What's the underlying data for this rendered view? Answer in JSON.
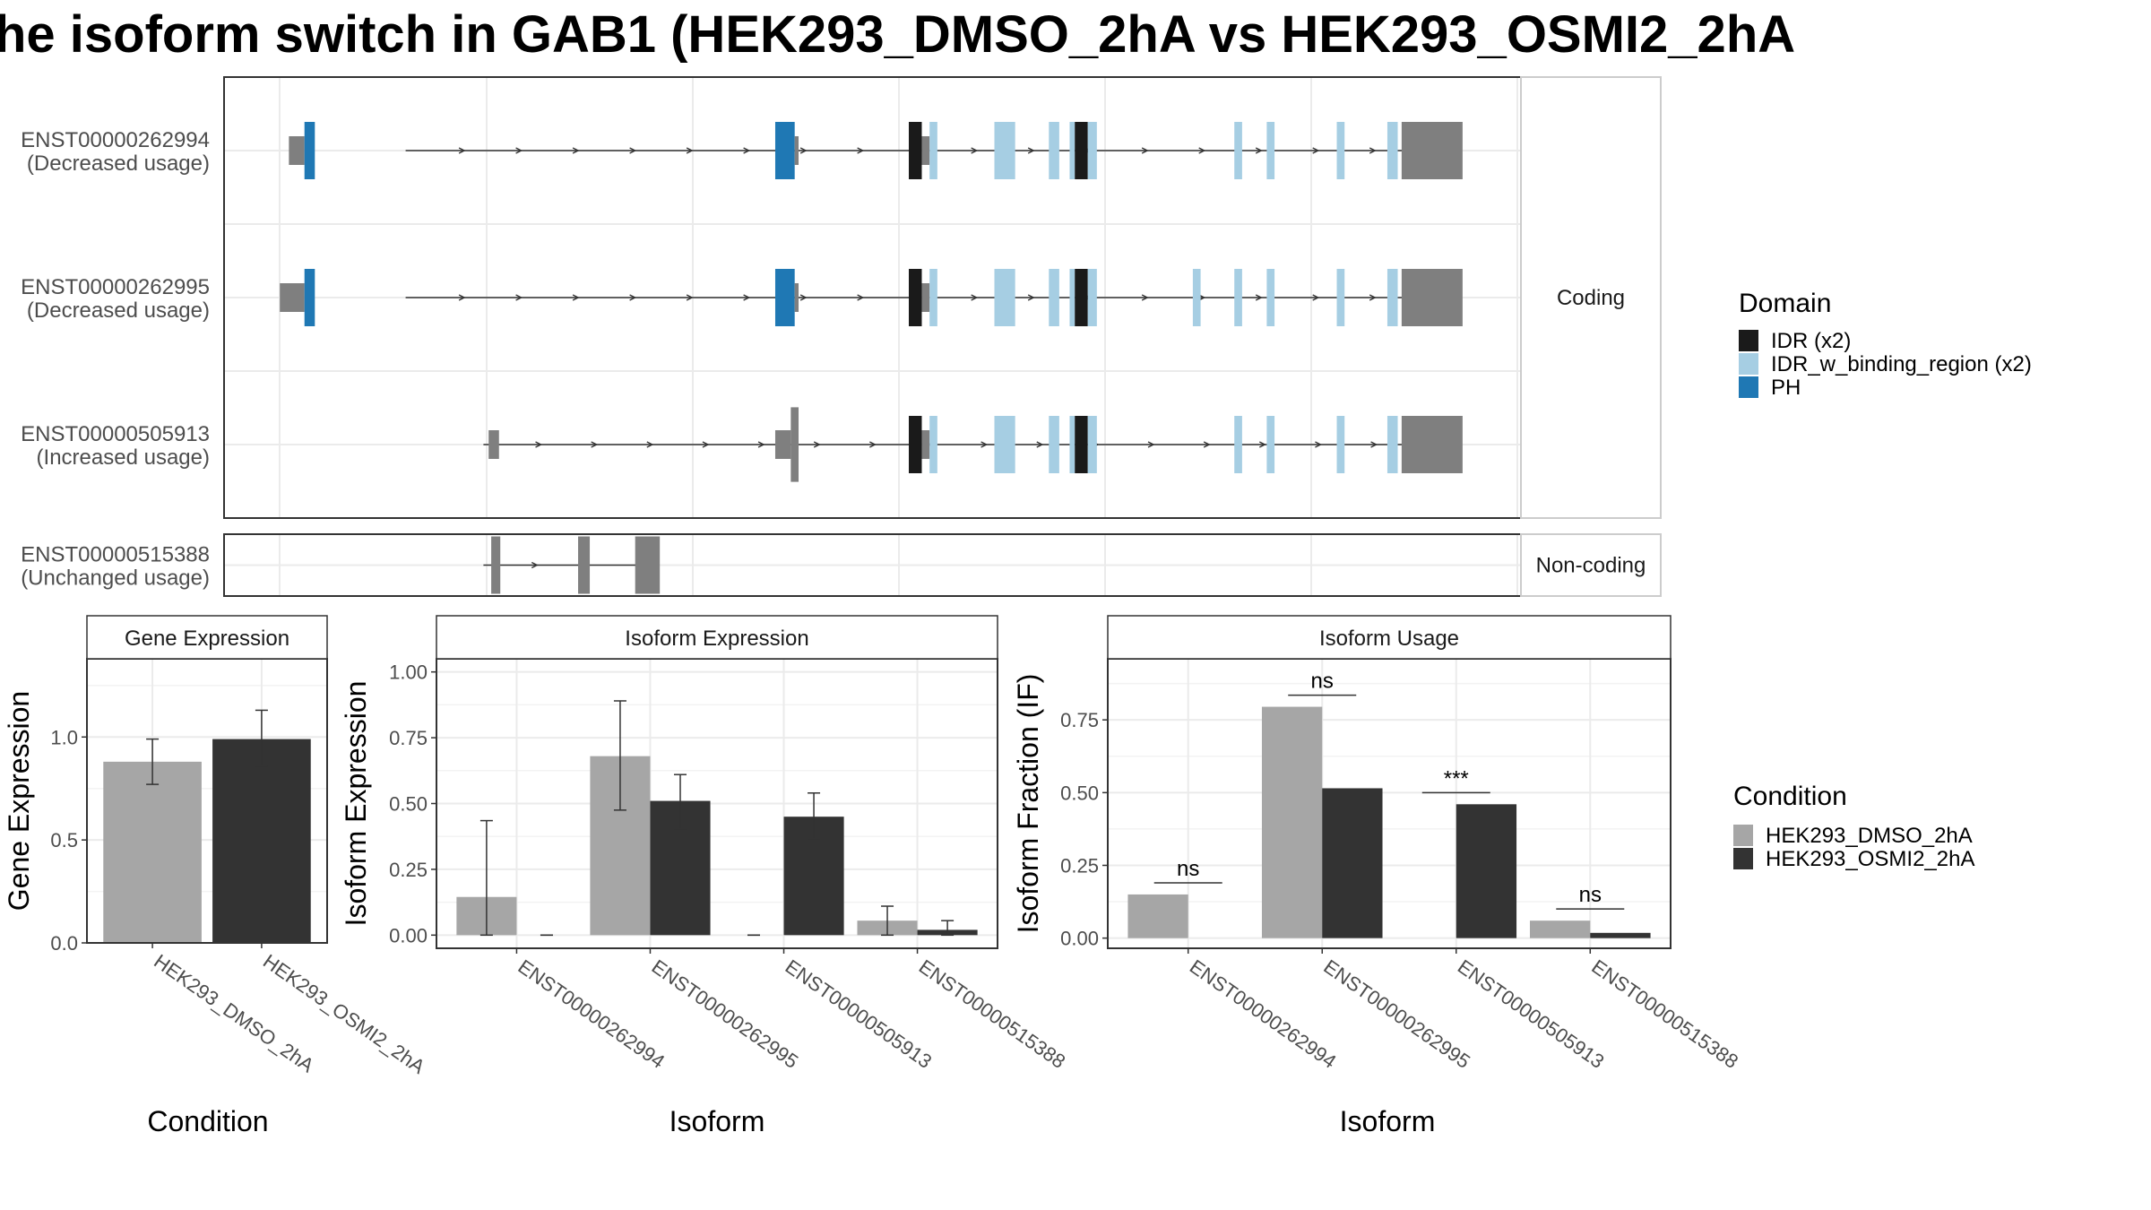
{
  "title": "he isoform switch in GAB1 (HEK293_DMSO_2hA vs HEK293_OSMI2_2hA",
  "colors": {
    "IDR": "#1a1a1a",
    "IDR_w_binding_region": "#a6cee3",
    "PH": "#1f78b4",
    "utr": "#7f7f7f",
    "DMSO": "#a6a6a6",
    "OSMI2": "#333333"
  },
  "domain_legend": {
    "title": "Domain",
    "items": [
      {
        "label": "IDR (x2)",
        "color_key": "IDR"
      },
      {
        "label": "IDR_w_binding_region (x2)",
        "color_key": "IDR_w_binding_region"
      },
      {
        "label": "PH",
        "color_key": "PH"
      }
    ]
  },
  "condition_legend": {
    "title": "Condition",
    "items": [
      {
        "label": "HEK293_DMSO_2hA",
        "color_key": "DMSO"
      },
      {
        "label": "HEK293_OSMI2_2hA",
        "color_key": "OSMI2"
      }
    ]
  },
  "transcripts": {
    "groups": [
      {
        "label": "Coding",
        "rows": [
          {
            "id": "ENST00000262994",
            "usage": "(Decreased usage)",
            "line": [
              0.14,
              0.93
            ],
            "exons": [
              {
                "s": 0.05,
                "e": 0.062,
                "t": "utr"
              },
              {
                "s": 0.062,
                "e": 0.07,
                "t": "PH"
              },
              {
                "s": 0.425,
                "e": 0.44,
                "t": "PH"
              },
              {
                "s": 0.44,
                "e": 0.443,
                "t": "utr"
              },
              {
                "s": 0.528,
                "e": 0.538,
                "t": "IDR"
              },
              {
                "s": 0.538,
                "e": 0.544,
                "t": "utr"
              },
              {
                "s": 0.544,
                "e": 0.55,
                "t": "IDR_w_binding_region"
              },
              {
                "s": 0.594,
                "e": 0.61,
                "t": "IDR_w_binding_region"
              },
              {
                "s": 0.636,
                "e": 0.644,
                "t": "IDR_w_binding_region"
              },
              {
                "s": 0.652,
                "e": 0.656,
                "t": "IDR_w_binding_region"
              },
              {
                "s": 0.656,
                "e": 0.666,
                "t": "IDR"
              },
              {
                "s": 0.666,
                "e": 0.673,
                "t": "IDR_w_binding_region"
              },
              {
                "s": 0.779,
                "e": 0.785,
                "t": "IDR_w_binding_region"
              },
              {
                "s": 0.804,
                "e": 0.81,
                "t": "IDR_w_binding_region"
              },
              {
                "s": 0.858,
                "e": 0.864,
                "t": "IDR_w_binding_region"
              },
              {
                "s": 0.897,
                "e": 0.905,
                "t": "IDR_w_binding_region"
              },
              {
                "s": 0.908,
                "e": 0.955,
                "t": "utr"
              }
            ]
          },
          {
            "id": "ENST00000262995",
            "usage": "(Decreased usage)",
            "line": [
              0.14,
              0.93
            ],
            "exons": [
              {
                "s": 0.043,
                "e": 0.062,
                "t": "utr"
              },
              {
                "s": 0.062,
                "e": 0.07,
                "t": "PH"
              },
              {
                "s": 0.425,
                "e": 0.44,
                "t": "PH"
              },
              {
                "s": 0.44,
                "e": 0.443,
                "t": "utr"
              },
              {
                "s": 0.528,
                "e": 0.538,
                "t": "IDR"
              },
              {
                "s": 0.538,
                "e": 0.544,
                "t": "utr"
              },
              {
                "s": 0.544,
                "e": 0.55,
                "t": "IDR_w_binding_region"
              },
              {
                "s": 0.594,
                "e": 0.61,
                "t": "IDR_w_binding_region"
              },
              {
                "s": 0.636,
                "e": 0.644,
                "t": "IDR_w_binding_region"
              },
              {
                "s": 0.652,
                "e": 0.656,
                "t": "IDR_w_binding_region"
              },
              {
                "s": 0.656,
                "e": 0.666,
                "t": "IDR"
              },
              {
                "s": 0.666,
                "e": 0.673,
                "t": "IDR_w_binding_region"
              },
              {
                "s": 0.747,
                "e": 0.753,
                "t": "IDR_w_binding_region"
              },
              {
                "s": 0.779,
                "e": 0.785,
                "t": "IDR_w_binding_region"
              },
              {
                "s": 0.804,
                "e": 0.81,
                "t": "IDR_w_binding_region"
              },
              {
                "s": 0.858,
                "e": 0.864,
                "t": "IDR_w_binding_region"
              },
              {
                "s": 0.897,
                "e": 0.905,
                "t": "IDR_w_binding_region"
              },
              {
                "s": 0.908,
                "e": 0.955,
                "t": "utr"
              }
            ]
          },
          {
            "id": "ENST00000505913",
            "usage": "(Increased usage)",
            "line": [
              0.2,
              0.93
            ],
            "exons": [
              {
                "s": 0.204,
                "e": 0.212,
                "t": "utr"
              },
              {
                "s": 0.425,
                "e": 0.437,
                "t": "utr"
              },
              {
                "s": 0.437,
                "e": 0.443,
                "t": "utr"
              },
              {
                "s": 0.528,
                "e": 0.538,
                "t": "IDR"
              },
              {
                "s": 0.538,
                "e": 0.544,
                "t": "utr"
              },
              {
                "s": 0.544,
                "e": 0.55,
                "t": "IDR_w_binding_region"
              },
              {
                "s": 0.594,
                "e": 0.61,
                "t": "IDR_w_binding_region"
              },
              {
                "s": 0.636,
                "e": 0.644,
                "t": "IDR_w_binding_region"
              },
              {
                "s": 0.652,
                "e": 0.656,
                "t": "IDR_w_binding_region"
              },
              {
                "s": 0.656,
                "e": 0.666,
                "t": "IDR"
              },
              {
                "s": 0.666,
                "e": 0.673,
                "t": "IDR_w_binding_region"
              },
              {
                "s": 0.779,
                "e": 0.785,
                "t": "IDR_w_binding_region"
              },
              {
                "s": 0.804,
                "e": 0.81,
                "t": "IDR_w_binding_region"
              },
              {
                "s": 0.858,
                "e": 0.864,
                "t": "IDR_w_binding_region"
              },
              {
                "s": 0.897,
                "e": 0.905,
                "t": "IDR_w_binding_region"
              },
              {
                "s": 0.908,
                "e": 0.955,
                "t": "utr"
              }
            ]
          }
        ]
      },
      {
        "label": "Non-coding",
        "rows": [
          {
            "id": "ENST00000515388",
            "usage": "(Unchanged usage)",
            "line": [
              0.2,
              0.32
            ],
            "exons": [
              {
                "s": 0.206,
                "e": 0.213,
                "t": "utr"
              },
              {
                "s": 0.273,
                "e": 0.282,
                "t": "utr"
              },
              {
                "s": 0.317,
                "e": 0.336,
                "t": "utr"
              }
            ]
          }
        ]
      }
    ]
  },
  "chart_data": [
    {
      "type": "bar",
      "title": "Gene Expression",
      "xlabel": "Condition",
      "ylabel": "Gene Expression",
      "categories": [
        "HEK293_DMSO_2hA",
        "HEK293_OSMI2_2hA"
      ],
      "series": [
        {
          "values": [
            0.88,
            0.99
          ],
          "error_low": [
            0.77,
            0.86
          ],
          "error_high": [
            0.99,
            1.13
          ]
        }
      ],
      "yticks": [
        "0.0",
        "0.5",
        "1.0"
      ],
      "ylim": [
        0,
        1.38
      ]
    },
    {
      "type": "bar",
      "title": "Isoform Expression",
      "xlabel": "Isoform",
      "ylabel": "Isoform Expression",
      "categories": [
        "ENST00000262994",
        "ENST00000262995",
        "ENST00000505913",
        "ENST00000515388"
      ],
      "series": [
        {
          "name": "HEK293_DMSO_2hA",
          "values": [
            0.145,
            0.68,
            0.0,
            0.055
          ],
          "error_low": [
            0.0,
            0.475,
            0.0,
            0.0
          ],
          "error_high": [
            0.435,
            0.89,
            0.0,
            0.11
          ]
        },
        {
          "name": "HEK293_OSMI2_2hA",
          "values": [
            0.0,
            0.51,
            0.45,
            0.02
          ],
          "error_low": [
            0.0,
            0.405,
            0.365,
            0.0
          ],
          "error_high": [
            0.0,
            0.61,
            0.54,
            0.055
          ]
        }
      ],
      "yticks": [
        "0.00",
        "0.25",
        "0.50",
        "0.75",
        "1.00"
      ],
      "ylim": [
        -0.05,
        1.05
      ]
    },
    {
      "type": "bar",
      "title": "Isoform Usage",
      "xlabel": "Isoform",
      "ylabel": "Isoform Fraction (IF)",
      "categories": [
        "ENST00000262994",
        "ENST00000262995",
        "ENST00000505913",
        "ENST00000515388"
      ],
      "series": [
        {
          "name": "HEK293_DMSO_2hA",
          "values": [
            0.15,
            0.795,
            0.0,
            0.06
          ]
        },
        {
          "name": "HEK293_OSMI2_2hA",
          "values": [
            0.0,
            0.515,
            0.46,
            0.018
          ]
        }
      ],
      "significance": [
        {
          "label": "ns",
          "y": 0.19
        },
        {
          "label": "ns",
          "y": 0.835
        },
        {
          "label": "***",
          "y": 0.5
        },
        {
          "label": "ns",
          "y": 0.1
        }
      ],
      "yticks": [
        "0.00",
        "0.25",
        "0.50",
        "0.75"
      ],
      "ylim": [
        -0.035,
        0.96
      ]
    }
  ]
}
